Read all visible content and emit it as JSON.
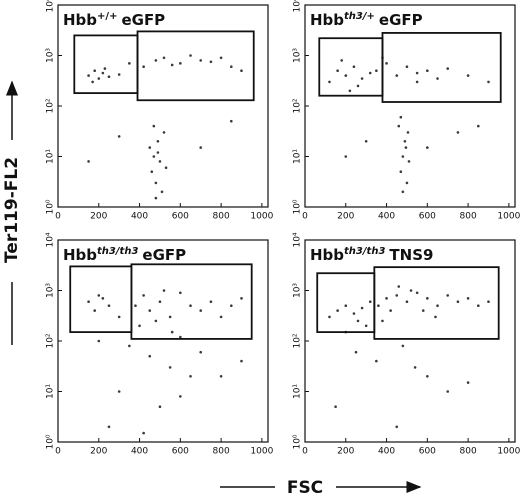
{
  "figure": {
    "x_label": "FSC",
    "y_label": "Ter119-FL2"
  },
  "chart_data": [
    {
      "type": "scatter",
      "title": {
        "main": "Hbb",
        "sup": "+/+",
        "rest": "eGFP"
      },
      "color": "#3a3a3a",
      "xlim": [
        0,
        1030
      ],
      "ylim": [
        1,
        10000
      ],
      "log_y": true,
      "xticks": [
        0,
        200,
        400,
        600,
        800,
        1000
      ],
      "yticks": [
        {
          "value": 1,
          "label": "10⁰"
        },
        {
          "value": 10,
          "label": "10¹"
        },
        {
          "value": 100,
          "label": "10²"
        },
        {
          "value": 1000,
          "label": "10³"
        },
        {
          "value": 10000,
          "label": "10⁴"
        }
      ],
      "gates": [
        {
          "x": [
            80,
            390
          ],
          "y": [
            180,
            2500
          ]
        },
        {
          "x": [
            390,
            960
          ],
          "y": [
            130,
            3000
          ]
        }
      ],
      "x": [
        150,
        180,
        200,
        220,
        250,
        170,
        230,
        300,
        350,
        420,
        480,
        520,
        560,
        600,
        650,
        700,
        750,
        800,
        850,
        900,
        460,
        470,
        480,
        490,
        500,
        510,
        450,
        520,
        480,
        530,
        470,
        490,
        300,
        700,
        150,
        850
      ],
      "y": [
        400,
        500,
        350,
        450,
        380,
        300,
        550,
        420,
        700,
        600,
        800,
        900,
        650,
        700,
        1000,
        800,
        750,
        900,
        600,
        500,
        5,
        10,
        3,
        20,
        8,
        2,
        15,
        30,
        1.5,
        6,
        40,
        12,
        25,
        15,
        8,
        50
      ]
    },
    {
      "type": "scatter",
      "title": {
        "main": "Hbb",
        "sup": "th3/+",
        "rest": "eGFP"
      },
      "color": "#3a3a3a",
      "xlim": [
        0,
        1030
      ],
      "ylim": [
        1,
        10000
      ],
      "log_y": true,
      "xticks": [
        0,
        200,
        400,
        600,
        800,
        1000
      ],
      "yticks": [
        {
          "value": 1,
          "label": "10⁰"
        },
        {
          "value": 10,
          "label": "10¹"
        },
        {
          "value": 100,
          "label": "10²"
        },
        {
          "value": 1000,
          "label": "10³"
        },
        {
          "value": 10000,
          "label": "10⁴"
        }
      ],
      "gates": [
        {
          "x": [
            70,
            380
          ],
          "y": [
            160,
            2200
          ]
        },
        {
          "x": [
            380,
            960
          ],
          "y": [
            120,
            2800
          ]
        }
      ],
      "x": [
        120,
        160,
        200,
        240,
        280,
        320,
        180,
        260,
        350,
        400,
        450,
        500,
        550,
        600,
        650,
        700,
        800,
        900,
        380,
        220,
        470,
        480,
        490,
        500,
        460,
        510,
        480,
        495,
        470,
        505,
        300,
        600,
        750,
        200,
        850,
        550
      ],
      "y": [
        300,
        500,
        400,
        600,
        350,
        450,
        800,
        250,
        500,
        700,
        400,
        600,
        450,
        500,
        350,
        550,
        400,
        300,
        900,
        200,
        5,
        10,
        20,
        3,
        40,
        8,
        2,
        15,
        60,
        30,
        20,
        15,
        30,
        10,
        40,
        300
      ]
    },
    {
      "type": "scatter",
      "title": {
        "main": "Hbb",
        "sup": "th3/th3",
        "rest": "eGFP"
      },
      "color": "#3a3a3a",
      "xlim": [
        0,
        1030
      ],
      "ylim": [
        1,
        10000
      ],
      "log_y": true,
      "xticks": [
        0,
        200,
        400,
        600,
        800,
        1000
      ],
      "yticks": [
        {
          "value": 1,
          "label": "10⁰"
        },
        {
          "value": 10,
          "label": "10¹"
        },
        {
          "value": 100,
          "label": "10²"
        },
        {
          "value": 1000,
          "label": "10³"
        },
        {
          "value": 10000,
          "label": "10⁴"
        }
      ],
      "gates": [
        {
          "x": [
            60,
            360
          ],
          "y": [
            150,
            3000
          ]
        },
        {
          "x": [
            360,
            950
          ],
          "y": [
            110,
            3300
          ]
        }
      ],
      "x": [
        150,
        200,
        250,
        180,
        220,
        300,
        380,
        420,
        450,
        500,
        550,
        600,
        650,
        700,
        750,
        800,
        850,
        900,
        400,
        480,
        520,
        560,
        600,
        350,
        450,
        550,
        650,
        200,
        300,
        500,
        700,
        800,
        250,
        600,
        420,
        900
      ],
      "y": [
        600,
        800,
        500,
        400,
        700,
        300,
        500,
        800,
        400,
        600,
        300,
        900,
        500,
        400,
        600,
        300,
        500,
        700,
        200,
        250,
        1000,
        150,
        120,
        80,
        50,
        30,
        20,
        100,
        10,
        5,
        60,
        20,
        2,
        8,
        1.5,
        40
      ]
    },
    {
      "type": "scatter",
      "title": {
        "main": "Hbb",
        "sup": "th3/th3",
        "rest": "TNS9"
      },
      "color": "#3a3a3a",
      "xlim": [
        0,
        1030
      ],
      "ylim": [
        1,
        10000
      ],
      "log_y": true,
      "xticks": [
        0,
        200,
        400,
        600,
        800,
        1000
      ],
      "yticks": [
        {
          "value": 1,
          "label": "10⁰"
        },
        {
          "value": 10,
          "label": "10¹"
        },
        {
          "value": 100,
          "label": "10²"
        },
        {
          "value": 1000,
          "label": "10³"
        },
        {
          "value": 10000,
          "label": "10⁴"
        }
      ],
      "gates": [
        {
          "x": [
            60,
            340
          ],
          "y": [
            150,
            2200
          ]
        },
        {
          "x": [
            340,
            950
          ],
          "y": [
            110,
            2900
          ]
        }
      ],
      "x": [
        120,
        160,
        200,
        240,
        280,
        320,
        360,
        400,
        450,
        500,
        550,
        600,
        650,
        700,
        750,
        800,
        850,
        900,
        300,
        380,
        420,
        460,
        520,
        580,
        640,
        200,
        260,
        480,
        540,
        700,
        250,
        600,
        150,
        800,
        450,
        350
      ],
      "y": [
        300,
        400,
        500,
        350,
        450,
        600,
        500,
        700,
        800,
        600,
        900,
        700,
        500,
        800,
        600,
        700,
        500,
        600,
        200,
        250,
        400,
        1200,
        1000,
        400,
        300,
        150,
        250,
        80,
        30,
        10,
        60,
        20,
        5,
        15,
        2,
        40
      ]
    }
  ]
}
